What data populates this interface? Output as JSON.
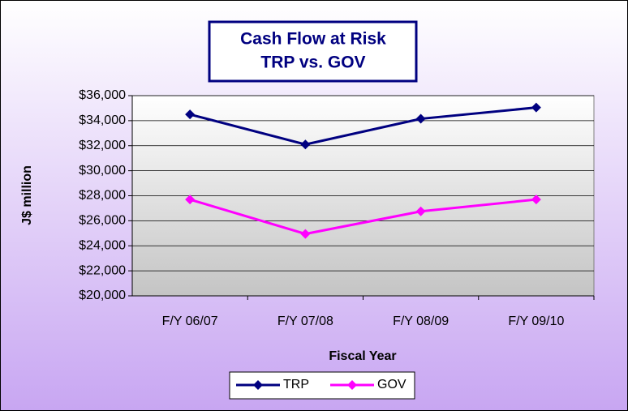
{
  "chart_data": {
    "type": "line",
    "title": [
      "Cash Flow at Risk",
      "TRP vs. GOV"
    ],
    "x_label": "Fiscal Year",
    "y_label": "J$ million",
    "categories": [
      "F/Y 06/07",
      "F/Y 07/08",
      "F/Y 08/09",
      "F/Y 09/10"
    ],
    "series": [
      {
        "name": "TRP",
        "color": "#000080",
        "values": [
          34500,
          32100,
          34150,
          35050
        ]
      },
      {
        "name": "GOV",
        "color": "#ff00ff",
        "values": [
          27700,
          24950,
          26750,
          27700
        ]
      }
    ],
    "ylim": [
      20000,
      36000
    ],
    "yticks": [
      {
        "value": 20000,
        "label": "$20,000"
      },
      {
        "value": 22000,
        "label": "$22,000"
      },
      {
        "value": 24000,
        "label": "$24,000"
      },
      {
        "value": 26000,
        "label": "$26,000"
      },
      {
        "value": 28000,
        "label": "$28,000"
      },
      {
        "value": 30000,
        "label": "$30,000"
      },
      {
        "value": 32000,
        "label": "$32,000"
      },
      {
        "value": 34000,
        "label": "$34,000"
      },
      {
        "value": 36000,
        "label": "$36,000"
      }
    ],
    "grid": true,
    "legend": "bottom"
  }
}
